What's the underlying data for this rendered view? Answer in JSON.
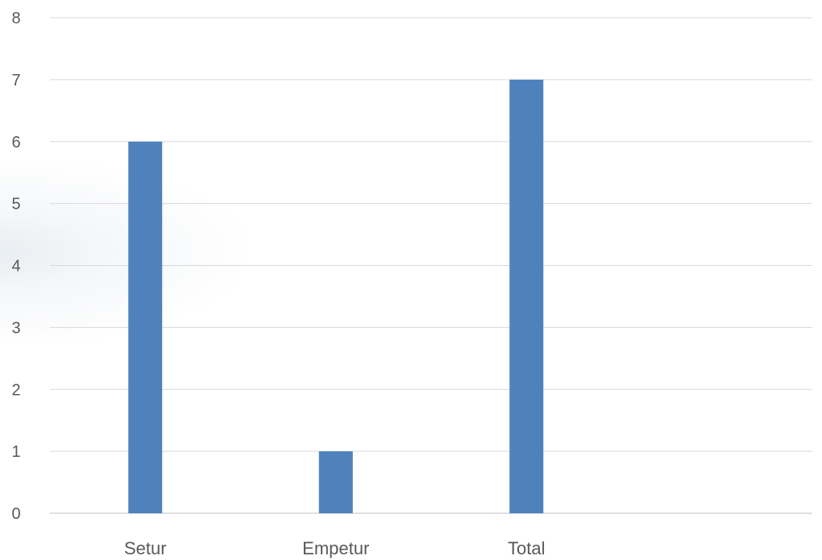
{
  "chart_data": {
    "type": "bar",
    "categories": [
      "Setur",
      "Empetur",
      "Total",
      ""
    ],
    "values": [
      6,
      1,
      7,
      null
    ],
    "ylim": [
      0,
      8
    ],
    "y_ticks": [
      0,
      1,
      2,
      3,
      4,
      5,
      6,
      7,
      8
    ],
    "grid": true,
    "legend": "none",
    "title": "",
    "xlabel": "",
    "ylabel": "",
    "colors": {
      "bar": "#4f81bd",
      "grid": "#d9d9d9",
      "axis": "#bfbfbf",
      "text": "#595959"
    }
  }
}
